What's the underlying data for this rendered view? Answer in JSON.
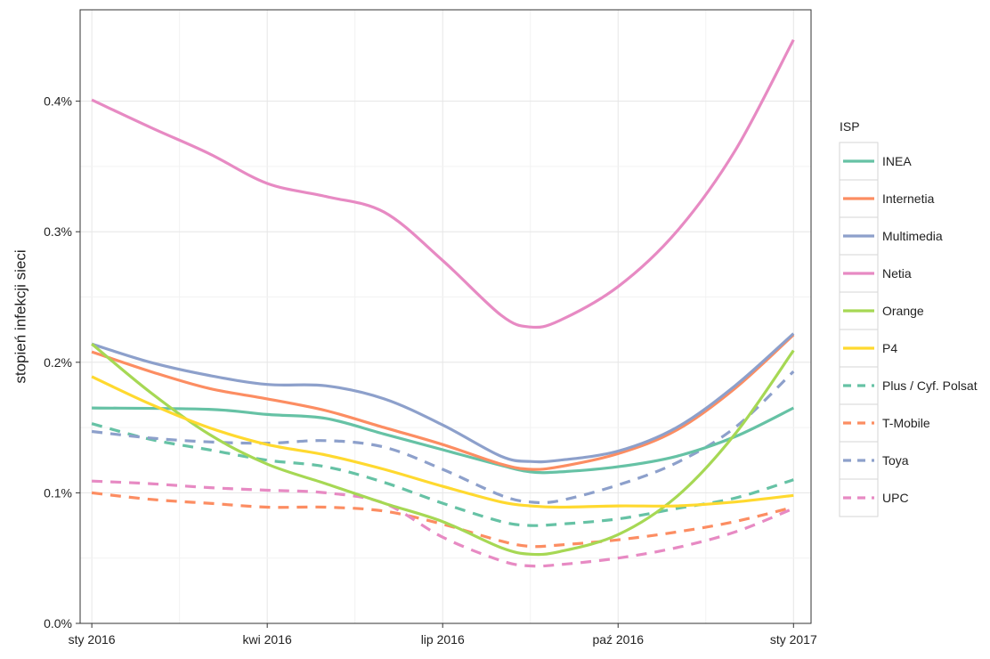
{
  "chart_data": {
    "type": "line",
    "ylabel": "stopień infekcji sieci",
    "xlabel": "",
    "title": "",
    "x_ticks": [
      "sty 2016",
      "kwi 2016",
      "lip 2016",
      "paź 2016",
      "sty 2017"
    ],
    "y_ticks": [
      "0.0%",
      "0.1%",
      "0.2%",
      "0.3%",
      "0.4%"
    ],
    "ylim": [
      0,
      0.47
    ],
    "xlim": [
      -0.2,
      12.3
    ],
    "x_unit": "months since sty 2016",
    "grid": true,
    "legend": {
      "title": "ISP",
      "position": "right"
    },
    "series": [
      {
        "name": "INEA",
        "color": "#66c2a5",
        "dash": "solid",
        "points": [
          [
            0,
            0.165
          ],
          [
            2,
            0.164
          ],
          [
            3,
            0.16
          ],
          [
            4,
            0.157
          ],
          [
            5,
            0.145
          ],
          [
            6,
            0.133
          ],
          [
            7,
            0.121
          ],
          [
            7.5,
            0.116
          ],
          [
            8,
            0.116
          ],
          [
            9,
            0.12
          ],
          [
            10,
            0.128
          ],
          [
            11,
            0.143
          ],
          [
            12,
            0.165
          ]
        ]
      },
      {
        "name": "Internetia",
        "color": "#fc8d62",
        "dash": "solid",
        "points": [
          [
            0,
            0.208
          ],
          [
            1,
            0.193
          ],
          [
            2,
            0.18
          ],
          [
            3,
            0.172
          ],
          [
            4,
            0.163
          ],
          [
            5,
            0.15
          ],
          [
            6,
            0.137
          ],
          [
            7,
            0.122
          ],
          [
            7.5,
            0.118
          ],
          [
            8,
            0.12
          ],
          [
            9,
            0.13
          ],
          [
            10,
            0.148
          ],
          [
            11,
            0.18
          ],
          [
            12,
            0.221
          ]
        ]
      },
      {
        "name": "Multimedia",
        "color": "#8da0cb",
        "dash": "solid",
        "points": [
          [
            0,
            0.214
          ],
          [
            1,
            0.2
          ],
          [
            2,
            0.19
          ],
          [
            3,
            0.183
          ],
          [
            4,
            0.182
          ],
          [
            5,
            0.172
          ],
          [
            6,
            0.152
          ],
          [
            7,
            0.128
          ],
          [
            7.5,
            0.124
          ],
          [
            8,
            0.125
          ],
          [
            9,
            0.132
          ],
          [
            10,
            0.15
          ],
          [
            11,
            0.182
          ],
          [
            12,
            0.222
          ]
        ]
      },
      {
        "name": "Netia",
        "color": "#e78ac3",
        "dash": "solid",
        "points": [
          [
            0,
            0.401
          ],
          [
            1,
            0.38
          ],
          [
            2,
            0.36
          ],
          [
            3,
            0.337
          ],
          [
            4,
            0.327
          ],
          [
            5,
            0.315
          ],
          [
            6,
            0.278
          ],
          [
            7,
            0.236
          ],
          [
            7.5,
            0.227
          ],
          [
            8,
            0.232
          ],
          [
            9,
            0.258
          ],
          [
            10,
            0.3
          ],
          [
            11,
            0.362
          ],
          [
            12,
            0.447
          ]
        ]
      },
      {
        "name": "Orange",
        "color": "#a6d854",
        "dash": "solid",
        "points": [
          [
            0,
            0.214
          ],
          [
            1,
            0.177
          ],
          [
            2,
            0.145
          ],
          [
            3,
            0.122
          ],
          [
            4,
            0.107
          ],
          [
            5,
            0.092
          ],
          [
            6,
            0.078
          ],
          [
            7,
            0.058
          ],
          [
            7.5,
            0.053
          ],
          [
            8,
            0.055
          ],
          [
            9,
            0.068
          ],
          [
            10,
            0.097
          ],
          [
            11,
            0.145
          ],
          [
            12,
            0.209
          ]
        ]
      },
      {
        "name": "P4",
        "color": "#ffd92f",
        "dash": "solid",
        "points": [
          [
            0,
            0.189
          ],
          [
            1,
            0.168
          ],
          [
            2,
            0.15
          ],
          [
            3,
            0.137
          ],
          [
            4,
            0.129
          ],
          [
            5,
            0.118
          ],
          [
            6,
            0.105
          ],
          [
            7,
            0.093
          ],
          [
            7.5,
            0.09
          ],
          [
            8,
            0.089
          ],
          [
            9,
            0.09
          ],
          [
            10,
            0.09
          ],
          [
            11,
            0.093
          ],
          [
            12,
            0.098
          ]
        ]
      },
      {
        "name": "Plus / Cyf. Polsat",
        "color": "#66c2a5",
        "dash": "dashed",
        "points": [
          [
            0,
            0.153
          ],
          [
            1,
            0.141
          ],
          [
            2,
            0.133
          ],
          [
            3,
            0.125
          ],
          [
            4,
            0.12
          ],
          [
            5,
            0.108
          ],
          [
            6,
            0.092
          ],
          [
            7,
            0.078
          ],
          [
            7.5,
            0.075
          ],
          [
            8,
            0.076
          ],
          [
            9,
            0.08
          ],
          [
            10,
            0.088
          ],
          [
            11,
            0.096
          ],
          [
            12,
            0.11
          ]
        ]
      },
      {
        "name": "T-Mobile",
        "color": "#fc8d62",
        "dash": "dashed",
        "points": [
          [
            0,
            0.1
          ],
          [
            1,
            0.095
          ],
          [
            2,
            0.092
          ],
          [
            3,
            0.089
          ],
          [
            4,
            0.089
          ],
          [
            5,
            0.086
          ],
          [
            6,
            0.076
          ],
          [
            7,
            0.063
          ],
          [
            7.5,
            0.059
          ],
          [
            8,
            0.06
          ],
          [
            9,
            0.064
          ],
          [
            10,
            0.07
          ],
          [
            11,
            0.078
          ],
          [
            12,
            0.089
          ]
        ]
      },
      {
        "name": "Toya",
        "color": "#8da0cb",
        "dash": "dashed",
        "points": [
          [
            0,
            0.147
          ],
          [
            1,
            0.142
          ],
          [
            2,
            0.139
          ],
          [
            3,
            0.138
          ],
          [
            4,
            0.14
          ],
          [
            5,
            0.135
          ],
          [
            6,
            0.118
          ],
          [
            7,
            0.098
          ],
          [
            7.5,
            0.093
          ],
          [
            8,
            0.094
          ],
          [
            9,
            0.106
          ],
          [
            10,
            0.123
          ],
          [
            11,
            0.15
          ],
          [
            12,
            0.193
          ]
        ]
      },
      {
        "name": "UPC",
        "color": "#e78ac3",
        "dash": "dashed",
        "points": [
          [
            0,
            0.109
          ],
          [
            1,
            0.107
          ],
          [
            2,
            0.104
          ],
          [
            3,
            0.102
          ],
          [
            4,
            0.1
          ],
          [
            5,
            0.092
          ],
          [
            6,
            0.066
          ],
          [
            7,
            0.048
          ],
          [
            7.5,
            0.044
          ],
          [
            8,
            0.045
          ],
          [
            9,
            0.05
          ],
          [
            10,
            0.058
          ],
          [
            11,
            0.07
          ],
          [
            12,
            0.088
          ]
        ]
      }
    ]
  }
}
